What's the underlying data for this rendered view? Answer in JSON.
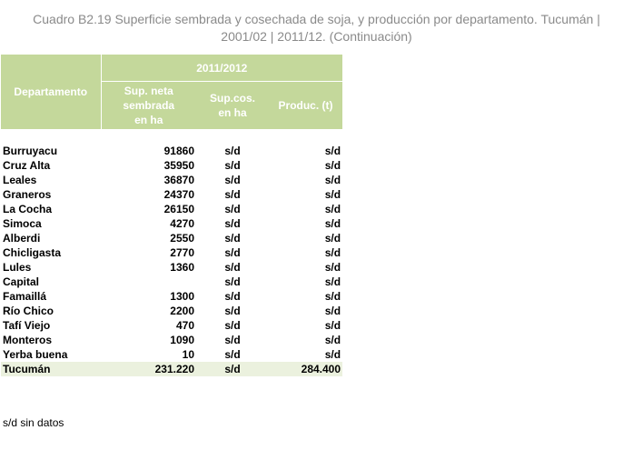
{
  "title_line1": "Cuadro B2.19 Superficie sembrada y cosechada de soja, y producción por departamento. Tucumán |",
  "title_line2": "2001/02 | 2011/12. (Continuación)",
  "header": {
    "departamento": "Departamento",
    "period": "2011/2012",
    "sup_neta": [
      "Sup. neta",
      "sembrada",
      "en ha"
    ],
    "sup_cos": [
      "Sup.cos.",
      "en ha"
    ],
    "produc": "Produc. (t)"
  },
  "rows": [
    {
      "name": "Burruyacu",
      "sup": "91860",
      "cos": "s/d",
      "prod": "s/d"
    },
    {
      "name": "Cruz Alta",
      "sup": "35950",
      "cos": "s/d",
      "prod": "s/d"
    },
    {
      "name": "Leales",
      "sup": "36870",
      "cos": "s/d",
      "prod": "s/d"
    },
    {
      "name": "Graneros",
      "sup": "24370",
      "cos": "s/d",
      "prod": "s/d"
    },
    {
      "name": "La Cocha",
      "sup": "26150",
      "cos": "s/d",
      "prod": "s/d"
    },
    {
      "name": "Simoca",
      "sup": "4270",
      "cos": "s/d",
      "prod": "s/d"
    },
    {
      "name": "Alberdi",
      "sup": "2550",
      "cos": "s/d",
      "prod": "s/d"
    },
    {
      "name": "Chicligasta",
      "sup": "2770",
      "cos": "s/d",
      "prod": "s/d"
    },
    {
      "name": "Lules",
      "sup": "1360",
      "cos": "s/d",
      "prod": "s/d"
    },
    {
      "name": "Capital",
      "sup": "",
      "cos": "s/d",
      "prod": "s/d"
    },
    {
      "name": "Famaillá",
      "sup": "1300",
      "cos": "s/d",
      "prod": "s/d"
    },
    {
      "name": "Río Chico",
      "sup": "2200",
      "cos": "s/d",
      "prod": "s/d"
    },
    {
      "name": "Tafí Viejo",
      "sup": "470",
      "cos": "s/d",
      "prod": "s/d"
    },
    {
      "name": "Monteros",
      "sup": "1090",
      "cos": "s/d",
      "prod": "s/d"
    },
    {
      "name": "Yerba buena",
      "sup": "10",
      "cos": "s/d",
      "prod": "s/d"
    }
  ],
  "total": {
    "name": "Tucumán",
    "sup": "231.220",
    "cos": "s/d",
    "prod": "284.400"
  },
  "footnote": "s/d sin datos",
  "colors": {
    "header_bg": "#c4d89b",
    "total_bg": "#ebf1de",
    "title": "#8a8a8a"
  }
}
